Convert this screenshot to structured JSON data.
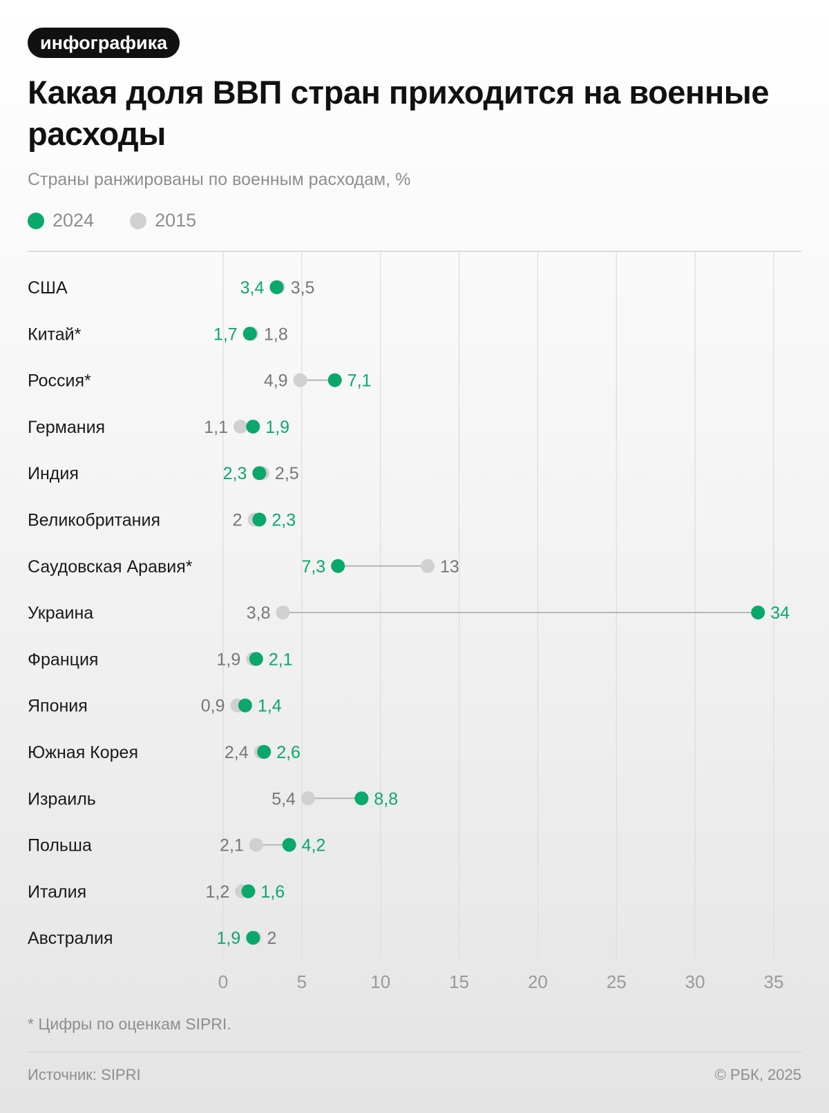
{
  "header": {
    "tag": "инфографика",
    "title": "Какая доля ВВП стран приходится на военные расходы",
    "subtitle": "Страны ранжированы по военным расходам, %"
  },
  "legend": [
    {
      "label": "2024",
      "color": "#0aa86b"
    },
    {
      "label": "2015",
      "color": "#d0d0d0"
    }
  ],
  "chart_data": {
    "type": "dumbbell",
    "title": "Какая доля ВВП стран приходится на военные расходы",
    "subtitle": "Страны ранжированы по военным расходам, %",
    "xlim": [
      0,
      35
    ],
    "xticks": [
      0,
      5,
      10,
      15,
      20,
      25,
      30,
      35
    ],
    "grid": true,
    "legend_position": "top-left",
    "categories": [
      "США",
      "Китай*",
      "Россия*",
      "Германия",
      "Индия",
      "Великобритания",
      "Саудовская Аравия*",
      "Украина",
      "Франция",
      "Япония",
      "Южная Корея",
      "Израиль",
      "Польша",
      "Италия",
      "Австралия"
    ],
    "series": [
      {
        "name": "2024",
        "color": "#0aa86b",
        "values": [
          3.4,
          1.7,
          7.1,
          1.9,
          2.3,
          2.3,
          7.3,
          34,
          2.1,
          1.4,
          2.6,
          8.8,
          4.2,
          1.6,
          1.9
        ]
      },
      {
        "name": "2015",
        "color": "#d0d0d0",
        "values": [
          3.5,
          1.8,
          4.9,
          1.1,
          2.5,
          2,
          13,
          3.8,
          1.9,
          0.9,
          2.4,
          5.4,
          2.1,
          1.2,
          2
        ]
      }
    ],
    "labels_2024": [
      "3,4",
      "1,7",
      "7,1",
      "1,9",
      "2,3",
      "2,3",
      "7,3",
      "34",
      "2,1",
      "1,4",
      "2,6",
      "8,8",
      "4,2",
      "1,6",
      "1,9"
    ],
    "labels_2015": [
      "3,5",
      "1,8",
      "4,9",
      "1,1",
      "2,5",
      "2",
      "13",
      "3,8",
      "1,9",
      "0,9",
      "2,4",
      "5,4",
      "2,1",
      "1,2",
      "2"
    ]
  },
  "footer": {
    "footnote": "* Цифры по оценкам SIPRI.",
    "source": "Источник: SIPRI",
    "copyright": "© РБК, 2025"
  }
}
